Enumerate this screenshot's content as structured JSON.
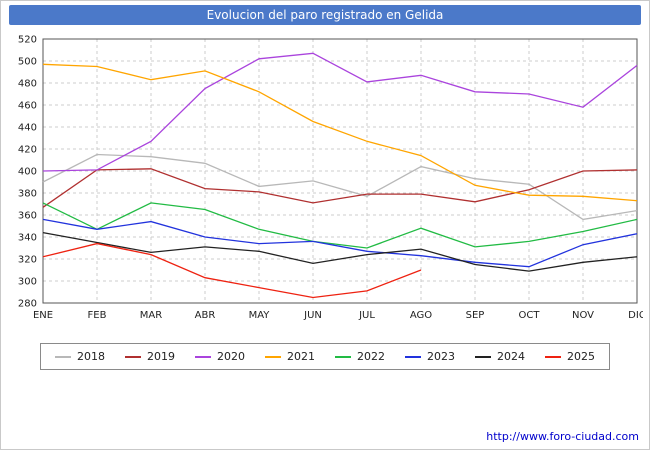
{
  "title_bar": {
    "bg_color": "#4b79c9",
    "text_color": "#ffffff"
  },
  "footer": {
    "url": "http://www.foro-ciudad.com",
    "link_color": "#0000cc"
  },
  "chart_style": {
    "grid_color": "#cccccc",
    "axis_color": "#555555",
    "tick_label_color": "#222222"
  },
  "chart_data": {
    "type": "line",
    "title": "Evolucion del paro registrado en Gelida",
    "categories": [
      "ENE",
      "FEB",
      "MAR",
      "ABR",
      "MAY",
      "JUN",
      "JUL",
      "AGO",
      "SEP",
      "OCT",
      "NOV",
      "DIC"
    ],
    "ylim": [
      280,
      520
    ],
    "ytick_step": 20,
    "grid": true,
    "legend_position": "bottom",
    "series": [
      {
        "name": "2018",
        "color": "#b8b8b8",
        "values": [
          390,
          415,
          413,
          407,
          386,
          391,
          377,
          404,
          393,
          388,
          356,
          364
        ]
      },
      {
        "name": "2019",
        "color": "#b03030",
        "values": [
          367,
          401,
          402,
          384,
          381,
          371,
          379,
          379,
          372,
          383,
          400,
          401
        ]
      },
      {
        "name": "2020",
        "color": "#aa44dd",
        "values": [
          400,
          401,
          427,
          475,
          502,
          507,
          481,
          487,
          472,
          470,
          458,
          496
        ]
      },
      {
        "name": "2021",
        "color": "#ffa500",
        "values": [
          497,
          495,
          483,
          491,
          472,
          445,
          427,
          414,
          387,
          378,
          377,
          373
        ]
      },
      {
        "name": "2022",
        "color": "#22bb44",
        "values": [
          371,
          347,
          371,
          365,
          347,
          336,
          330,
          348,
          331,
          336,
          345,
          356
        ]
      },
      {
        "name": "2023",
        "color": "#2233dd",
        "values": [
          356,
          347,
          354,
          340,
          334,
          336,
          327,
          323,
          317,
          313,
          333,
          343
        ]
      },
      {
        "name": "2024",
        "color": "#222222",
        "values": [
          344,
          335,
          326,
          331,
          327,
          316,
          324,
          329,
          315,
          309,
          317,
          322
        ]
      },
      {
        "name": "2025",
        "color": "#ee2211",
        "values": [
          322,
          334,
          324,
          303,
          294,
          285,
          291,
          310
        ]
      }
    ]
  }
}
